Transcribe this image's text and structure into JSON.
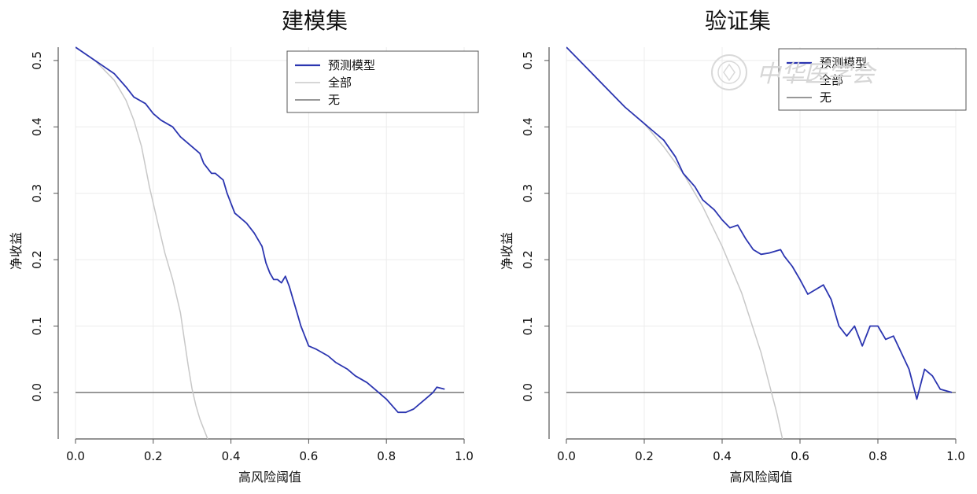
{
  "watermark": {
    "text": "中华医学会",
    "icon": "medical-association-seal-icon"
  },
  "chart_data": [
    {
      "type": "line",
      "title": "建模集",
      "xlabel": "高风险阈值",
      "ylabel": "净收益",
      "xlim": [
        0,
        1.0
      ],
      "ylim": [
        -0.07,
        0.52
      ],
      "xticks": [
        "0.0",
        "0.2",
        "0.4",
        "0.6",
        "0.8",
        "1.0"
      ],
      "yticks": [
        "0.0",
        "0.1",
        "0.2",
        "0.3",
        "0.4",
        "0.5"
      ],
      "grid": true,
      "legend": "top-right",
      "series": [
        {
          "name": "预测模型",
          "color": "#2b35b0",
          "x": [
            0.0,
            0.05,
            0.1,
            0.13,
            0.15,
            0.18,
            0.2,
            0.22,
            0.25,
            0.27,
            0.3,
            0.32,
            0.33,
            0.35,
            0.36,
            0.38,
            0.39,
            0.4,
            0.41,
            0.42,
            0.44,
            0.46,
            0.48,
            0.49,
            0.5,
            0.51,
            0.52,
            0.53,
            0.54,
            0.55,
            0.56,
            0.57,
            0.58,
            0.59,
            0.6,
            0.62,
            0.65,
            0.67,
            0.7,
            0.72,
            0.75,
            0.77,
            0.8,
            0.83,
            0.85,
            0.87,
            0.9,
            0.92,
            0.93,
            0.95
          ],
          "values": [
            0.52,
            0.5,
            0.48,
            0.46,
            0.445,
            0.435,
            0.42,
            0.41,
            0.4,
            0.385,
            0.37,
            0.36,
            0.345,
            0.33,
            0.33,
            0.32,
            0.3,
            0.285,
            0.27,
            0.265,
            0.255,
            0.24,
            0.22,
            0.195,
            0.18,
            0.17,
            0.17,
            0.165,
            0.175,
            0.16,
            0.14,
            0.12,
            0.1,
            0.085,
            0.07,
            0.065,
            0.055,
            0.045,
            0.035,
            0.025,
            0.015,
            0.005,
            -0.01,
            -0.03,
            -0.03,
            -0.025,
            -0.01,
            0.0,
            0.008,
            0.005
          ]
        },
        {
          "name": "全部",
          "color": "#c8c8c8",
          "x": [
            0.0,
            0.05,
            0.1,
            0.13,
            0.15,
            0.17,
            0.19,
            0.21,
            0.23,
            0.25,
            0.27,
            0.28,
            0.29,
            0.3,
            0.31,
            0.32,
            0.33,
            0.34
          ],
          "values": [
            0.52,
            0.5,
            0.47,
            0.44,
            0.41,
            0.37,
            0.31,
            0.26,
            0.21,
            0.17,
            0.12,
            0.08,
            0.04,
            0.005,
            -0.02,
            -0.04,
            -0.055,
            -0.07
          ]
        },
        {
          "name": "无",
          "color": "#777777",
          "x": [
            0.0,
            1.0
          ],
          "values": [
            0.0,
            0.0
          ]
        }
      ]
    },
    {
      "type": "line",
      "title": "验证集",
      "xlabel": "高风险阈值",
      "ylabel": "净收益",
      "xlim": [
        0,
        1.0
      ],
      "ylim": [
        -0.07,
        0.52
      ],
      "xticks": [
        "0.0",
        "0.2",
        "0.4",
        "0.6",
        "0.8",
        "1.0"
      ],
      "yticks": [
        "0.0",
        "0.1",
        "0.2",
        "0.3",
        "0.4",
        "0.5"
      ],
      "grid": true,
      "legend": "top-right",
      "series": [
        {
          "name": "预测模型",
          "color": "#2b35b0",
          "x": [
            0.0,
            0.05,
            0.1,
            0.15,
            0.2,
            0.22,
            0.25,
            0.28,
            0.3,
            0.33,
            0.35,
            0.38,
            0.4,
            0.42,
            0.44,
            0.46,
            0.48,
            0.5,
            0.52,
            0.55,
            0.56,
            0.58,
            0.6,
            0.62,
            0.64,
            0.66,
            0.68,
            0.7,
            0.72,
            0.74,
            0.76,
            0.78,
            0.8,
            0.82,
            0.84,
            0.86,
            0.88,
            0.9,
            0.92,
            0.94,
            0.96,
            0.99
          ],
          "values": [
            0.52,
            0.49,
            0.46,
            0.43,
            0.405,
            0.395,
            0.38,
            0.355,
            0.33,
            0.31,
            0.29,
            0.275,
            0.26,
            0.248,
            0.252,
            0.232,
            0.215,
            0.208,
            0.21,
            0.215,
            0.205,
            0.19,
            0.17,
            0.148,
            0.155,
            0.162,
            0.14,
            0.1,
            0.085,
            0.1,
            0.07,
            0.1,
            0.1,
            0.08,
            0.085,
            0.06,
            0.035,
            -0.01,
            0.035,
            0.025,
            0.005,
            0.0
          ]
        },
        {
          "name": "全部",
          "color": "#c8c8c8",
          "x": [
            0.0,
            0.05,
            0.1,
            0.15,
            0.2,
            0.25,
            0.3,
            0.35,
            0.4,
            0.45,
            0.5,
            0.52,
            0.54,
            0.555
          ],
          "values": [
            0.52,
            0.49,
            0.46,
            0.43,
            0.405,
            0.37,
            0.33,
            0.28,
            0.22,
            0.15,
            0.06,
            0.015,
            -0.03,
            -0.07
          ]
        },
        {
          "name": "无",
          "color": "#777777",
          "x": [
            0.0,
            1.0
          ],
          "values": [
            0.0,
            0.0
          ]
        }
      ]
    }
  ]
}
